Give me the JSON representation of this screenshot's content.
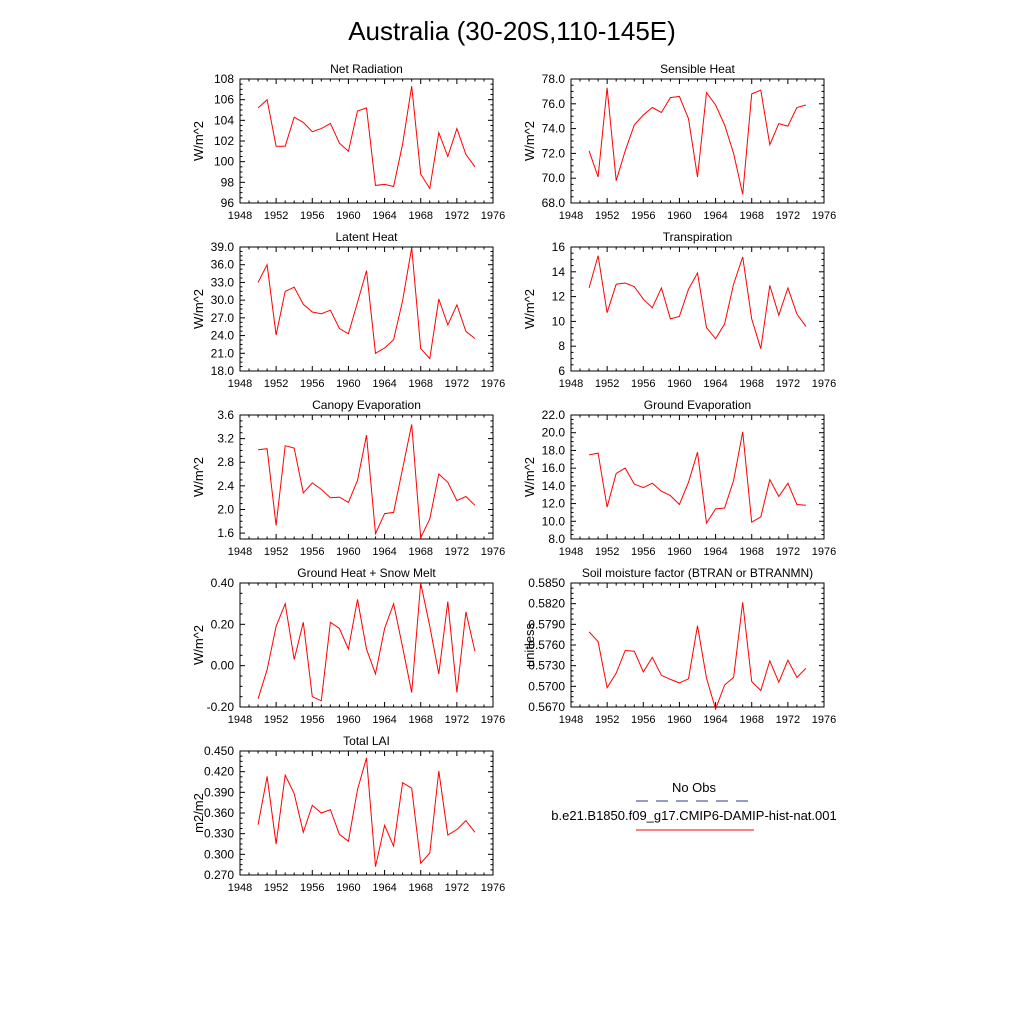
{
  "figure": {
    "title": "Australia (30-20S,110-145E)"
  },
  "legend": {
    "entries": [
      {
        "label": "No Obs",
        "color": "#2b3a8c",
        "dash": true
      },
      {
        "label": "b.e21.B1850.f09_g17.CMIP6-DAMIP-hist-nat.001",
        "color": "#ff0000",
        "dash": false
      }
    ]
  },
  "chart_data": [
    {
      "type": "line",
      "title": "Net Radiation",
      "ylabel": "W/m^2",
      "xlabel": "",
      "xlim": [
        1948,
        1976
      ],
      "xticks": [
        1948,
        1952,
        1956,
        1960,
        1964,
        1968,
        1972,
        1976
      ],
      "ylim": [
        96,
        108
      ],
      "yticks": [
        "96",
        "98",
        "100",
        "102",
        "104",
        "106",
        "108"
      ],
      "series": [
        {
          "color": "#ff0000",
          "x": [
            1950,
            1951,
            1952,
            1953,
            1954,
            1955,
            1956,
            1957,
            1958,
            1959,
            1960,
            1961,
            1962,
            1963,
            1964,
            1965,
            1966,
            1967,
            1968,
            1969,
            1970,
            1971,
            1972,
            1973,
            1974
          ],
          "y": [
            105.2,
            106.0,
            101.5,
            101.5,
            104.3,
            103.8,
            102.9,
            103.2,
            103.7,
            101.8,
            101.0,
            104.9,
            105.2,
            97.7,
            97.8,
            97.6,
            101.7,
            107.3,
            98.8,
            97.4,
            102.8,
            100.5,
            103.2,
            100.7,
            99.5
          ]
        }
      ]
    },
    {
      "type": "line",
      "title": "Sensible Heat",
      "ylabel": "W/m^2",
      "xlabel": "",
      "xlim": [
        1948,
        1976
      ],
      "xticks": [
        1948,
        1952,
        1956,
        1960,
        1964,
        1968,
        1972,
        1976
      ],
      "ylim": [
        68,
        78
      ],
      "yticks": [
        "68.0",
        "70.0",
        "72.0",
        "74.0",
        "76.0",
        "78.0"
      ],
      "series": [
        {
          "color": "#ff0000",
          "x": [
            1950,
            1951,
            1952,
            1953,
            1954,
            1955,
            1956,
            1957,
            1958,
            1959,
            1960,
            1961,
            1962,
            1963,
            1964,
            1965,
            1966,
            1967,
            1968,
            1969,
            1970,
            1971,
            1972,
            1973,
            1974
          ],
          "y": [
            72.2,
            70.1,
            77.3,
            69.8,
            72.2,
            74.3,
            75.1,
            75.7,
            75.3,
            76.5,
            76.6,
            74.8,
            70.1,
            76.9,
            75.9,
            74.3,
            72.0,
            68.7,
            76.8,
            77.1,
            72.7,
            74.4,
            74.2,
            75.7,
            75.9
          ]
        }
      ]
    },
    {
      "type": "line",
      "title": "Latent Heat",
      "ylabel": "W/m^2",
      "xlabel": "",
      "xlim": [
        1948,
        1976
      ],
      "xticks": [
        1948,
        1952,
        1956,
        1960,
        1964,
        1968,
        1972,
        1976
      ],
      "ylim": [
        18,
        39
      ],
      "yticks": [
        "18.0",
        "21.0",
        "24.0",
        "27.0",
        "30.0",
        "33.0",
        "36.0",
        "39.0"
      ],
      "series": [
        {
          "color": "#ff0000",
          "x": [
            1950,
            1951,
            1952,
            1953,
            1954,
            1955,
            1956,
            1957,
            1958,
            1959,
            1960,
            1961,
            1962,
            1963,
            1964,
            1965,
            1966,
            1967,
            1968,
            1969,
            1970,
            1971,
            1972,
            1973,
            1974
          ],
          "y": [
            33.0,
            36.0,
            24.1,
            31.5,
            32.2,
            29.3,
            28.0,
            27.7,
            28.3,
            25.2,
            24.3,
            29.6,
            35.0,
            21.0,
            21.9,
            23.3,
            29.9,
            38.9,
            21.8,
            20.1,
            30.2,
            25.8,
            29.2,
            24.7,
            23.5
          ]
        }
      ]
    },
    {
      "type": "line",
      "title": "Transpiration",
      "ylabel": "W/m^2",
      "xlabel": "",
      "xlim": [
        1948,
        1976
      ],
      "xticks": [
        1948,
        1952,
        1956,
        1960,
        1964,
        1968,
        1972,
        1976
      ],
      "ylim": [
        6,
        16
      ],
      "yticks": [
        "6",
        "8",
        "10",
        "12",
        "14",
        "16"
      ],
      "series": [
        {
          "color": "#ff0000",
          "x": [
            1950,
            1951,
            1952,
            1953,
            1954,
            1955,
            1956,
            1957,
            1958,
            1959,
            1960,
            1961,
            1962,
            1963,
            1964,
            1965,
            1966,
            1967,
            1968,
            1969,
            1970,
            1971,
            1972,
            1973,
            1974
          ],
          "y": [
            12.7,
            15.3,
            10.7,
            13.0,
            13.1,
            12.8,
            11.8,
            11.1,
            12.7,
            10.2,
            10.4,
            12.6,
            13.9,
            9.5,
            8.6,
            9.8,
            13.0,
            15.2,
            10.2,
            7.8,
            12.9,
            10.5,
            12.7,
            10.6,
            9.6
          ]
        }
      ]
    },
    {
      "type": "line",
      "title": "Canopy Evaporation",
      "ylabel": "W/m^2",
      "xlabel": "",
      "xlim": [
        1948,
        1976
      ],
      "xticks": [
        1948,
        1952,
        1956,
        1960,
        1964,
        1968,
        1972,
        1976
      ],
      "ylim": [
        1.5,
        3.6
      ],
      "yticks": [
        "1.6",
        "2.0",
        "2.4",
        "2.8",
        "3.2",
        "3.6"
      ],
      "series": [
        {
          "color": "#ff0000",
          "x": [
            1950,
            1951,
            1952,
            1953,
            1954,
            1955,
            1956,
            1957,
            1958,
            1959,
            1960,
            1961,
            1962,
            1963,
            1964,
            1965,
            1966,
            1967,
            1968,
            1969,
            1970,
            1971,
            1972,
            1973,
            1974
          ],
          "y": [
            3.01,
            3.03,
            1.73,
            3.08,
            3.04,
            2.28,
            2.45,
            2.34,
            2.2,
            2.21,
            2.12,
            2.49,
            3.26,
            1.59,
            1.93,
            1.95,
            2.69,
            3.44,
            1.52,
            1.84,
            2.6,
            2.46,
            2.15,
            2.22,
            2.07
          ]
        }
      ]
    },
    {
      "type": "line",
      "title": "Ground Evaporation",
      "ylabel": "W/m^2",
      "xlabel": "",
      "xlim": [
        1948,
        1976
      ],
      "xticks": [
        1948,
        1952,
        1956,
        1960,
        1964,
        1968,
        1972,
        1976
      ],
      "ylim": [
        8,
        22
      ],
      "yticks": [
        "8.0",
        "10.0",
        "12.0",
        "14.0",
        "16.0",
        "18.0",
        "20.0",
        "22.0"
      ],
      "series": [
        {
          "color": "#ff0000",
          "x": [
            1950,
            1951,
            1952,
            1953,
            1954,
            1955,
            1956,
            1957,
            1958,
            1959,
            1960,
            1961,
            1962,
            1963,
            1964,
            1965,
            1966,
            1967,
            1968,
            1969,
            1970,
            1971,
            1972,
            1973,
            1974
          ],
          "y": [
            17.5,
            17.7,
            11.6,
            15.4,
            16.0,
            14.2,
            13.8,
            14.3,
            13.4,
            12.9,
            11.9,
            14.4,
            17.8,
            9.8,
            11.4,
            11.5,
            14.6,
            20.1,
            9.9,
            10.5,
            14.7,
            12.8,
            14.3,
            11.9,
            11.8
          ]
        }
      ]
    },
    {
      "type": "line",
      "title": "Ground Heat + Snow Melt",
      "ylabel": "W/m^2",
      "xlabel": "",
      "xlim": [
        1948,
        1976
      ],
      "xticks": [
        1948,
        1952,
        1956,
        1960,
        1964,
        1968,
        1972,
        1976
      ],
      "ylim": [
        -0.2,
        0.4
      ],
      "yticks": [
        "-0.20",
        "0.00",
        "0.20",
        "0.40"
      ],
      "series": [
        {
          "color": "#ff0000",
          "x": [
            1950,
            1951,
            1952,
            1953,
            1954,
            1955,
            1956,
            1957,
            1958,
            1959,
            1960,
            1961,
            1962,
            1963,
            1964,
            1965,
            1966,
            1967,
            1968,
            1969,
            1970,
            1971,
            1972,
            1973,
            1974
          ],
          "y": [
            -0.16,
            -0.02,
            0.19,
            0.3,
            0.03,
            0.21,
            -0.15,
            -0.17,
            0.21,
            0.18,
            0.08,
            0.32,
            0.08,
            -0.04,
            0.18,
            0.3,
            0.09,
            -0.13,
            0.4,
            0.19,
            -0.04,
            0.31,
            -0.13,
            0.26,
            0.07
          ]
        }
      ]
    },
    {
      "type": "line",
      "title": "Soil moisture factor (BTRAN or BTRANMN)",
      "ylabel": "unitless",
      "xlabel": "",
      "xlim": [
        1948,
        1976
      ],
      "xticks": [
        1948,
        1952,
        1956,
        1960,
        1964,
        1968,
        1972,
        1976
      ],
      "ylim": [
        0.567,
        0.585
      ],
      "yticks": [
        "0.5670",
        "0.5700",
        "0.5730",
        "0.5760",
        "0.5790",
        "0.5820",
        "0.5850"
      ],
      "series": [
        {
          "color": "#ff0000",
          "x": [
            1950,
            1951,
            1952,
            1953,
            1954,
            1955,
            1956,
            1957,
            1958,
            1959,
            1960,
            1961,
            1962,
            1963,
            1964,
            1965,
            1966,
            1967,
            1968,
            1969,
            1970,
            1971,
            1972,
            1973,
            1974
          ],
          "y": [
            0.5779,
            0.5765,
            0.5698,
            0.5719,
            0.5752,
            0.5751,
            0.5721,
            0.5742,
            0.5716,
            0.571,
            0.5705,
            0.5711,
            0.5788,
            0.5712,
            0.5667,
            0.5702,
            0.5713,
            0.5822,
            0.5707,
            0.5694,
            0.5737,
            0.5706,
            0.5738,
            0.5713,
            0.5726
          ]
        }
      ]
    },
    {
      "type": "line",
      "title": "Total LAI",
      "ylabel": "m2/m2",
      "xlabel": "",
      "xlim": [
        1948,
        1976
      ],
      "xticks": [
        1948,
        1952,
        1956,
        1960,
        1964,
        1968,
        1972,
        1976
      ],
      "ylim": [
        0.27,
        0.45
      ],
      "yticks": [
        "0.270",
        "0.300",
        "0.330",
        "0.360",
        "0.390",
        "0.420",
        "0.450"
      ],
      "series": [
        {
          "color": "#ff0000",
          "x": [
            1950,
            1951,
            1952,
            1953,
            1954,
            1955,
            1956,
            1957,
            1958,
            1959,
            1960,
            1961,
            1962,
            1963,
            1964,
            1965,
            1966,
            1967,
            1968,
            1969,
            1970,
            1971,
            1972,
            1973,
            1974
          ],
          "y": [
            0.343,
            0.413,
            0.315,
            0.415,
            0.388,
            0.332,
            0.371,
            0.36,
            0.365,
            0.329,
            0.319,
            0.394,
            0.44,
            0.282,
            0.342,
            0.312,
            0.404,
            0.396,
            0.287,
            0.302,
            0.421,
            0.328,
            0.336,
            0.349,
            0.332
          ]
        }
      ]
    }
  ]
}
